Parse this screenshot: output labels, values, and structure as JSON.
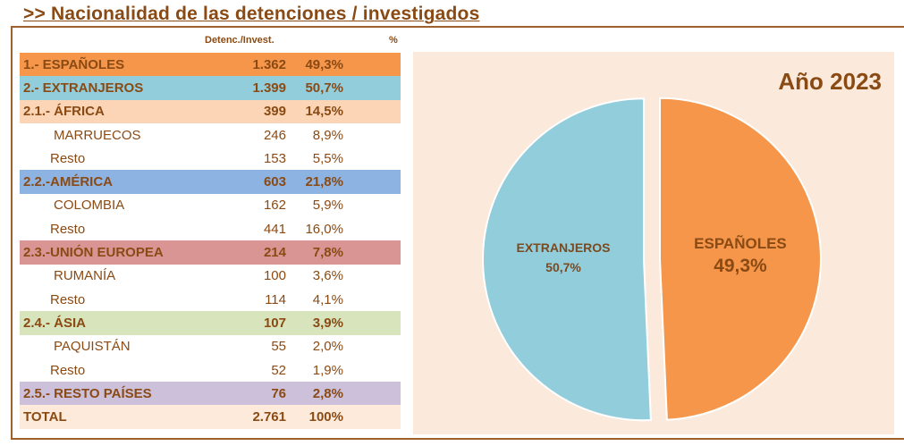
{
  "title": ">> Nacionalidad de las detenciones / investigados",
  "headers": {
    "count": "Detenc./Invest.",
    "pct": "%"
  },
  "colors": {
    "espanoles": "#f5964a",
    "extranjeros": "#92cddc",
    "africa": "#fbd5b5",
    "america": "#8db3e2",
    "ue": "#d99594",
    "asia": "#d7e4bc",
    "resto": "#ccc0da",
    "total": "#fdeada"
  },
  "rows": [
    {
      "label": "1.- ESPAÑOLES",
      "count": "1.362",
      "pct": "49,3%",
      "style": "espanoles"
    },
    {
      "label": "2.- EXTRANJEROS",
      "count": "1.399",
      "pct": "50,7%",
      "style": "extranjeros"
    },
    {
      "label": "2.1.- ÁFRICA",
      "count": "399",
      "pct": "14,5%",
      "style": "africa"
    },
    {
      "label": "MARRUECOS",
      "count": "246",
      "pct": "8,9%",
      "style": "sub"
    },
    {
      "label": "Resto",
      "count": "153",
      "pct": "5,5%",
      "style": "sub2"
    },
    {
      "label": "2.2.-AMÉRICA",
      "count": "603",
      "pct": "21,8%",
      "style": "america"
    },
    {
      "label": "COLOMBIA",
      "count": "162",
      "pct": "5,9%",
      "style": "sub"
    },
    {
      "label": "Resto",
      "count": "441",
      "pct": "16,0%",
      "style": "sub2"
    },
    {
      "label": "2.3.-UNIÓN EUROPEA",
      "count": "214",
      "pct": "7,8%",
      "style": "ue"
    },
    {
      "label": "RUMANÍA",
      "count": "100",
      "pct": "3,6%",
      "style": "sub"
    },
    {
      "label": "Resto",
      "count": "114",
      "pct": "4,1%",
      "style": "sub2"
    },
    {
      "label": "2.4.- ÁSIA",
      "count": "107",
      "pct": "3,9%",
      "style": "asia"
    },
    {
      "label": "PAQUISTÁN",
      "count": "55",
      "pct": "2,0%",
      "style": "sub"
    },
    {
      "label": "Resto",
      "count": "52",
      "pct": "1,9%",
      "style": "sub2"
    },
    {
      "label": "2.5.- RESTO PAÍSES",
      "count": "76",
      "pct": "2,8%",
      "style": "resto"
    },
    {
      "label": "TOTAL",
      "count": "2.761",
      "pct": "100%",
      "style": "total"
    }
  ],
  "chart_data": {
    "type": "pie",
    "title": "Año 2023",
    "slices": [
      {
        "label": "ESPAÑOLES",
        "value": 49.3,
        "display": "49,3%",
        "color": "#f5964a"
      },
      {
        "label": "EXTRANJEROS",
        "value": 50.7,
        "display": "50,7%",
        "color": "#92cddc"
      }
    ]
  }
}
